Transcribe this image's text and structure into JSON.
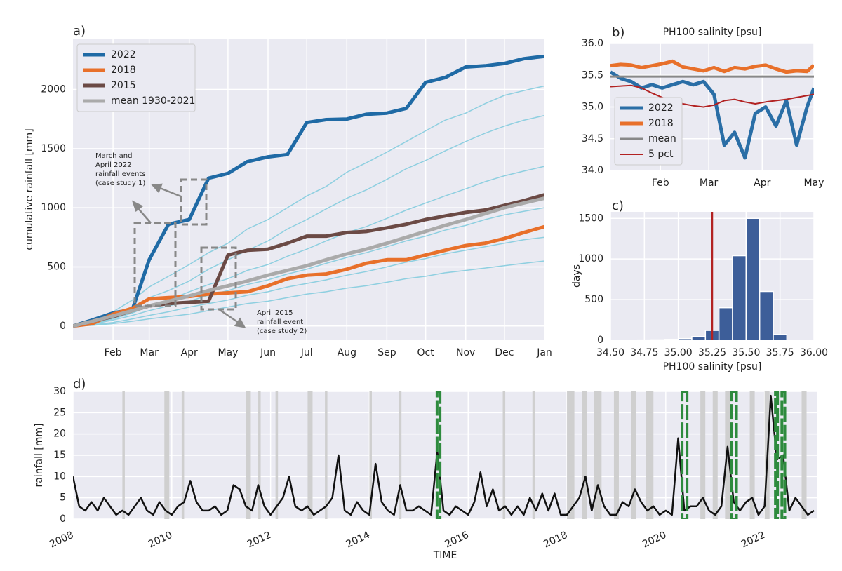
{
  "chart_data": [
    {
      "type": "line",
      "panel_label": "a)",
      "ylabel": "cumulative rainfall [mm]",
      "legend": "upper left",
      "grid": true,
      "x": [
        0,
        15,
        31,
        46,
        59,
        74,
        90,
        105,
        120,
        135,
        151,
        166,
        181,
        196,
        212,
        227,
        243,
        258,
        273,
        288,
        304,
        319,
        334,
        349,
        365
      ],
      "xlim": [
        0,
        365
      ],
      "xticks": [
        {
          "value": 31,
          "label": "Feb"
        },
        {
          "value": 59,
          "label": "Mar"
        },
        {
          "value": 90,
          "label": "Apr"
        },
        {
          "value": 120,
          "label": "May"
        },
        {
          "value": 151,
          "label": "Jun"
        },
        {
          "value": 181,
          "label": "Jul"
        },
        {
          "value": 212,
          "label": "Aug"
        },
        {
          "value": 243,
          "label": "Sep"
        },
        {
          "value": 273,
          "label": "Oct"
        },
        {
          "value": 304,
          "label": "Nov"
        },
        {
          "value": 334,
          "label": "Dec"
        },
        {
          "value": 365,
          "label": "Jan"
        }
      ],
      "ylim": [
        -120,
        2430
      ],
      "yticks": [
        0,
        500,
        1000,
        1500,
        2000
      ],
      "background_series": [
        {
          "color": "#8ecfe0",
          "values": [
            0,
            40,
            120,
            220,
            330,
            420,
            520,
            620,
            700,
            820,
            900,
            1000,
            1100,
            1180,
            1300,
            1380,
            1470,
            1560,
            1650,
            1740,
            1800,
            1880,
            1950,
            1990,
            2030
          ]
        },
        {
          "color": "#8ecfe0",
          "values": [
            0,
            30,
            90,
            160,
            240,
            300,
            380,
            480,
            560,
            640,
            720,
            820,
            900,
            990,
            1080,
            1150,
            1240,
            1330,
            1400,
            1480,
            1560,
            1630,
            1690,
            1740,
            1780
          ]
        },
        {
          "color": "#8ecfe0",
          "values": [
            0,
            20,
            60,
            110,
            170,
            220,
            290,
            350,
            400,
            470,
            520,
            590,
            650,
            720,
            790,
            840,
            910,
            980,
            1040,
            1100,
            1160,
            1220,
            1270,
            1310,
            1350
          ]
        },
        {
          "color": "#8ecfe0",
          "values": [
            0,
            15,
            50,
            90,
            130,
            170,
            210,
            260,
            300,
            350,
            390,
            440,
            480,
            530,
            580,
            620,
            670,
            720,
            760,
            810,
            850,
            900,
            940,
            970,
            1000
          ]
        },
        {
          "color": "#8ecfe0",
          "values": [
            0,
            10,
            30,
            60,
            90,
            120,
            160,
            190,
            220,
            260,
            290,
            330,
            360,
            390,
            430,
            460,
            500,
            540,
            570,
            610,
            640,
            670,
            700,
            730,
            750
          ]
        },
        {
          "color": "#8ecfe0",
          "values": [
            0,
            5,
            20,
            40,
            60,
            80,
            100,
            130,
            160,
            190,
            210,
            240,
            270,
            290,
            320,
            340,
            370,
            400,
            420,
            450,
            470,
            490,
            510,
            530,
            550
          ]
        }
      ],
      "series": [
        {
          "name": "2022",
          "color": "#1f6aa5",
          "width": 5,
          "values": [
            0,
            50,
            110,
            140,
            560,
            860,
            900,
            1250,
            1290,
            1390,
            1430,
            1450,
            1720,
            1745,
            1750,
            1790,
            1800,
            1840,
            2060,
            2100,
            2190,
            2200,
            2220,
            2260,
            2280
          ]
        },
        {
          "name": "2018",
          "color": "#e8702a",
          "width": 5,
          "values": [
            0,
            20,
            100,
            150,
            230,
            240,
            250,
            270,
            280,
            290,
            340,
            400,
            430,
            440,
            480,
            530,
            560,
            560,
            600,
            640,
            680,
            700,
            740,
            790,
            840
          ]
        },
        {
          "name": "2015",
          "color": "#6b4a45",
          "width": 5,
          "values": [
            0,
            40,
            80,
            130,
            170,
            190,
            200,
            210,
            600,
            640,
            650,
            700,
            760,
            760,
            790,
            800,
            830,
            860,
            900,
            930,
            960,
            980,
            1020,
            1060,
            1110
          ]
        },
        {
          "name": "mean 1930-2021",
          "color": "#aaaaaa",
          "width": 5,
          "values": [
            0,
            40,
            85,
            130,
            170,
            210,
            255,
            300,
            340,
            380,
            430,
            470,
            510,
            560,
            610,
            650,
            700,
            750,
            800,
            850,
            900,
            950,
            1000,
            1040,
            1080
          ]
        }
      ],
      "annotations": [
        {
          "lines": [
            "March and",
            "April 2022",
            "rainfall events",
            "(case study 1)"
          ]
        },
        {
          "lines": [
            "April 2015",
            "rainfall event",
            "(case study 2)"
          ]
        }
      ]
    },
    {
      "type": "line",
      "panel_label": "b)",
      "title": "PH100 salinity [psu]",
      "legend": "lower left",
      "grid": true,
      "x": [
        2,
        8,
        14,
        20,
        26,
        32,
        38,
        44,
        50,
        56,
        62,
        68,
        74,
        80,
        86,
        92,
        98,
        104,
        110,
        116,
        120
      ],
      "xlim": [
        2,
        120
      ],
      "xticks": [
        {
          "value": 31,
          "label": "Feb"
        },
        {
          "value": 59,
          "label": "Mar"
        },
        {
          "value": 90,
          "label": "Apr"
        },
        {
          "value": 120,
          "label": "May"
        }
      ],
      "ylim": [
        34.0,
        36.0
      ],
      "yticks": [
        {
          "value": 34.0,
          "label": "34.0"
        },
        {
          "value": 34.5,
          "label": "34.5"
        },
        {
          "value": 35.0,
          "label": "35.0"
        },
        {
          "value": 35.5,
          "label": "35.5"
        },
        {
          "value": 36.0,
          "label": "36.0"
        }
      ],
      "series": [
        {
          "name": "2022",
          "color": "#2a6ea6",
          "width": 5,
          "values": [
            35.55,
            35.45,
            35.4,
            35.3,
            35.35,
            35.3,
            35.35,
            35.4,
            35.35,
            35.4,
            35.2,
            34.4,
            34.6,
            34.2,
            34.9,
            35.0,
            34.7,
            35.1,
            34.4,
            35.0,
            35.3
          ]
        },
        {
          "name": "2018",
          "color": "#e8702a",
          "width": 5,
          "values": [
            35.65,
            35.67,
            35.66,
            35.62,
            35.65,
            35.68,
            35.72,
            35.63,
            35.6,
            35.57,
            35.62,
            35.56,
            35.62,
            35.6,
            35.64,
            35.66,
            35.6,
            35.55,
            35.57,
            35.56,
            35.66
          ]
        },
        {
          "name": "mean",
          "color": "#888888",
          "width": 3,
          "values": [
            35.48,
            35.48,
            35.48,
            35.48,
            35.48,
            35.48,
            35.48,
            35.48,
            35.48,
            35.48,
            35.48,
            35.48,
            35.48,
            35.48,
            35.48,
            35.48,
            35.48,
            35.48,
            35.48,
            35.48,
            35.48
          ]
        },
        {
          "name": "5 pct",
          "color": "#b22222",
          "width": 2,
          "values": [
            35.32,
            35.33,
            35.34,
            35.3,
            35.22,
            35.15,
            35.1,
            35.05,
            35.02,
            35.0,
            35.03,
            35.1,
            35.12,
            35.08,
            35.05,
            35.08,
            35.1,
            35.12,
            35.15,
            35.18,
            35.2
          ]
        }
      ]
    },
    {
      "type": "histogram",
      "panel_label": "c)",
      "xlabel": "PH100 salinity [psu]",
      "ylabel": "days",
      "grid": true,
      "color": "#3d5e99",
      "bins": [
        34.7,
        34.8,
        34.9,
        35.0,
        35.1,
        35.2,
        35.3,
        35.4,
        35.5,
        35.6,
        35.7,
        35.8
      ],
      "counts": [
        3,
        5,
        10,
        20,
        45,
        120,
        400,
        1040,
        1500,
        600,
        70
      ],
      "threshold": 35.25,
      "threshold_color": "#b22222",
      "xlim": [
        34.5,
        36.0
      ],
      "xticks": [
        {
          "value": 34.5,
          "label": "34.50"
        },
        {
          "value": 34.75,
          "label": "34.75"
        },
        {
          "value": 35.0,
          "label": "35.00"
        },
        {
          "value": 35.25,
          "label": "35.25"
        },
        {
          "value": 35.5,
          "label": "35.50"
        },
        {
          "value": 35.75,
          "label": "35.75"
        },
        {
          "value": 36.0,
          "label": "36.00"
        }
      ],
      "ylim": [
        0,
        1580
      ],
      "yticks": [
        0,
        500,
        1000,
        1500
      ]
    },
    {
      "type": "line",
      "panel_label": "d)",
      "xlabel": "TIME",
      "ylabel": "rainfall [mm]",
      "grid": true,
      "x": [
        2008,
        2008.125,
        2008.25,
        2008.375,
        2008.5,
        2008.625,
        2008.75,
        2008.875,
        2009,
        2009.125,
        2009.25,
        2009.375,
        2009.5,
        2009.625,
        2009.75,
        2009.875,
        2010,
        2010.125,
        2010.25,
        2010.375,
        2010.5,
        2010.625,
        2010.75,
        2010.875,
        2011,
        2011.125,
        2011.25,
        2011.375,
        2011.5,
        2011.625,
        2011.75,
        2011.875,
        2012,
        2012.125,
        2012.25,
        2012.375,
        2012.5,
        2012.625,
        2012.75,
        2012.875,
        2013,
        2013.125,
        2013.25,
        2013.375,
        2013.5,
        2013.625,
        2013.75,
        2013.875,
        2014,
        2014.125,
        2014.25,
        2014.375,
        2014.5,
        2014.625,
        2014.75,
        2014.875,
        2015,
        2015.125,
        2015.25,
        2015.375,
        2015.5,
        2015.625,
        2015.75,
        2015.875,
        2016,
        2016.125,
        2016.25,
        2016.375,
        2016.5,
        2016.625,
        2016.75,
        2016.875,
        2017,
        2017.125,
        2017.25,
        2017.375,
        2017.5,
        2017.625,
        2017.75,
        2017.875,
        2018,
        2018.125,
        2018.25,
        2018.375,
        2018.5,
        2018.625,
        2018.75,
        2018.875,
        2019,
        2019.125,
        2019.25,
        2019.375,
        2019.5,
        2019.625,
        2019.75,
        2019.875,
        2020,
        2020.125,
        2020.25,
        2020.375,
        2020.5,
        2020.625,
        2020.75,
        2020.875,
        2021,
        2021.125,
        2021.25,
        2021.375,
        2021.5,
        2021.625,
        2021.75,
        2021.875,
        2022,
        2022.125,
        2022.25,
        2022.375,
        2022.5,
        2022.625,
        2022.75,
        2022.875,
        2023
      ],
      "series": [
        {
          "color": "#111111",
          "width": 2.5,
          "values": [
            10,
            3,
            2,
            4,
            2,
            5,
            3,
            1,
            2,
            1,
            3,
            5,
            2,
            1,
            4,
            2,
            1,
            3,
            4,
            9,
            4,
            2,
            2,
            3,
            1,
            2,
            8,
            7,
            3,
            2,
            8,
            3,
            1,
            3,
            5,
            10,
            3,
            2,
            3,
            1,
            2,
            3,
            5,
            15,
            2,
            1,
            4,
            2,
            1,
            13,
            4,
            2,
            1,
            8,
            2,
            2,
            3,
            2,
            1,
            16,
            2,
            1,
            3,
            2,
            1,
            4,
            11,
            3,
            7,
            2,
            3,
            1,
            3,
            1,
            5,
            2,
            6,
            2,
            6,
            1,
            1,
            3,
            5,
            10,
            2,
            8,
            3,
            1,
            1,
            4,
            3,
            7,
            4,
            2,
            3,
            1,
            2,
            1,
            19,
            2,
            3,
            3,
            5,
            2,
            1,
            3,
            17,
            4,
            2,
            4,
            5,
            1,
            3,
            29,
            14,
            15,
            2,
            5,
            3,
            1,
            2
          ]
        }
      ],
      "gray_color": "#cfcfcf",
      "gray_spans": [
        [
          2009.0,
          2009.05
        ],
        [
          2009.85,
          2009.95
        ],
        [
          2010.2,
          2010.25
        ],
        [
          2011.5,
          2011.6
        ],
        [
          2011.75,
          2011.8
        ],
        [
          2012.1,
          2012.15
        ],
        [
          2012.75,
          2012.85
        ],
        [
          2013.1,
          2013.15
        ],
        [
          2014.0,
          2014.05
        ],
        [
          2014.6,
          2014.65
        ],
        [
          2016.7,
          2016.75
        ],
        [
          2017.3,
          2017.35
        ],
        [
          2018.0,
          2018.15
        ],
        [
          2018.3,
          2018.4
        ],
        [
          2018.55,
          2018.7
        ],
        [
          2018.95,
          2019.05
        ],
        [
          2019.3,
          2019.4
        ],
        [
          2019.6,
          2019.75
        ],
        [
          2020.7,
          2020.8
        ],
        [
          2020.95,
          2021.05
        ],
        [
          2021.2,
          2021.3
        ],
        [
          2021.7,
          2021.8
        ],
        [
          2022.0,
          2022.1
        ],
        [
          2022.75,
          2022.85
        ]
      ],
      "green_color": "#2e8b3e",
      "green_spans": [
        [
          2015.37,
          2015.43
        ],
        [
          2020.33,
          2020.43
        ],
        [
          2021.33,
          2021.43
        ],
        [
          2022.22,
          2022.25
        ],
        [
          2022.35,
          2022.41
        ]
      ],
      "xlim": [
        2008,
        2023.07
      ],
      "xticks": [
        2008,
        2010,
        2012,
        2014,
        2016,
        2018,
        2020,
        2022
      ],
      "ylim": [
        0,
        30
      ],
      "yticks": [
        0,
        5,
        10,
        15,
        20,
        25,
        30
      ]
    }
  ]
}
